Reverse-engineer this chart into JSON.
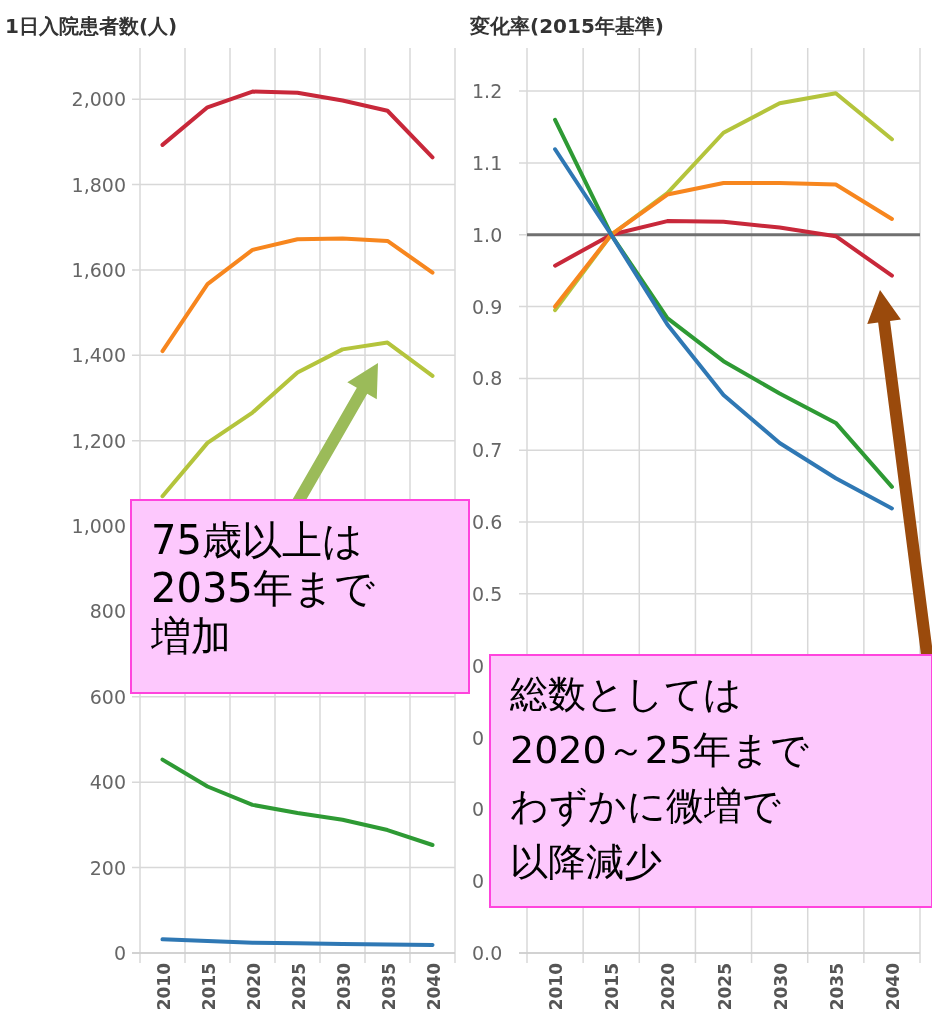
{
  "chart_data": [
    {
      "type": "line",
      "title": "1日入院患者数(人)",
      "categories": [
        "2010",
        "2015",
        "2020",
        "2025",
        "2030",
        "2035",
        "2040"
      ],
      "series": [
        {
          "color": "#c8283a",
          "values": [
            1893,
            1981,
            2018,
            2015,
            1997,
            1973,
            1864
          ]
        },
        {
          "color": "#f7861e",
          "values": [
            1410,
            1567,
            1647,
            1672,
            1674,
            1668,
            1594
          ]
        },
        {
          "color": "#b4c43c",
          "values": [
            1070,
            1195,
            1266,
            1360,
            1414,
            1430,
            1352
          ]
        },
        {
          "color": "#2e9a34",
          "values": [
            453,
            390,
            347,
            328,
            312,
            288,
            253
          ]
        },
        {
          "color": "#2f78b4",
          "values": [
            32,
            28,
            24,
            23,
            21,
            20,
            19
          ]
        }
      ],
      "ylim": [
        0,
        2120
      ],
      "yticks": [
        0,
        200,
        400,
        600,
        800,
        {
          "value": 1000,
          "label": "1,000"
        },
        {
          "value": 1200,
          "label": "1,200"
        },
        {
          "value": 1400,
          "label": "1,400"
        },
        {
          "value": 1600,
          "label": "1,600"
        },
        {
          "value": 1800,
          "label": "1,800"
        },
        {
          "value": 2000,
          "label": "2,000"
        }
      ],
      "grid": true,
      "annotations": [
        "75歳以上は2035年まで増加"
      ]
    },
    {
      "type": "line",
      "title": "変化率(2015年基準)",
      "categories": [
        "2010",
        "2015",
        "2020",
        "2025",
        "2030",
        "2035",
        "2040"
      ],
      "series": [
        {
          "color": "#c8283a",
          "values": [
            0.957,
            1.0,
            1.019,
            1.018,
            1.01,
            0.998,
            0.943
          ]
        },
        {
          "color": "#b4c43c",
          "values": [
            0.895,
            1.0,
            1.058,
            1.142,
            1.183,
            1.197,
            1.133
          ]
        },
        {
          "color": "#f7861e",
          "values": [
            0.9,
            1.0,
            1.056,
            1.072,
            1.072,
            1.07,
            1.022
          ]
        },
        {
          "color": "#2e9a34",
          "values": [
            1.16,
            1.0,
            0.884,
            0.824,
            0.779,
            0.738,
            0.649
          ]
        },
        {
          "color": "#2f78b4",
          "values": [
            1.119,
            1.0,
            0.875,
            0.777,
            0.71,
            0.661,
            0.619
          ]
        }
      ],
      "ylim": [
        0,
        1.26
      ],
      "yticks": [
        {
          "value": 0,
          "label": "0.0"
        },
        {
          "value": 0.1,
          "label": "0"
        },
        {
          "value": 0.2,
          "label": "0"
        },
        {
          "value": 0.3,
          "label": "0"
        },
        {
          "value": 0.4,
          "label": "0"
        },
        0.5,
        0.6,
        0.7,
        0.8,
        0.9,
        {
          "value": 1,
          "label": "1.0"
        },
        1.1,
        1.2
      ],
      "grid": true,
      "ref_lines": [
        {
          "axis": "y",
          "value": 1,
          "color": "#707070"
        }
      ],
      "annotations": [
        "総数としては2020～25年までわずかに微増で以降減少"
      ]
    }
  ]
}
